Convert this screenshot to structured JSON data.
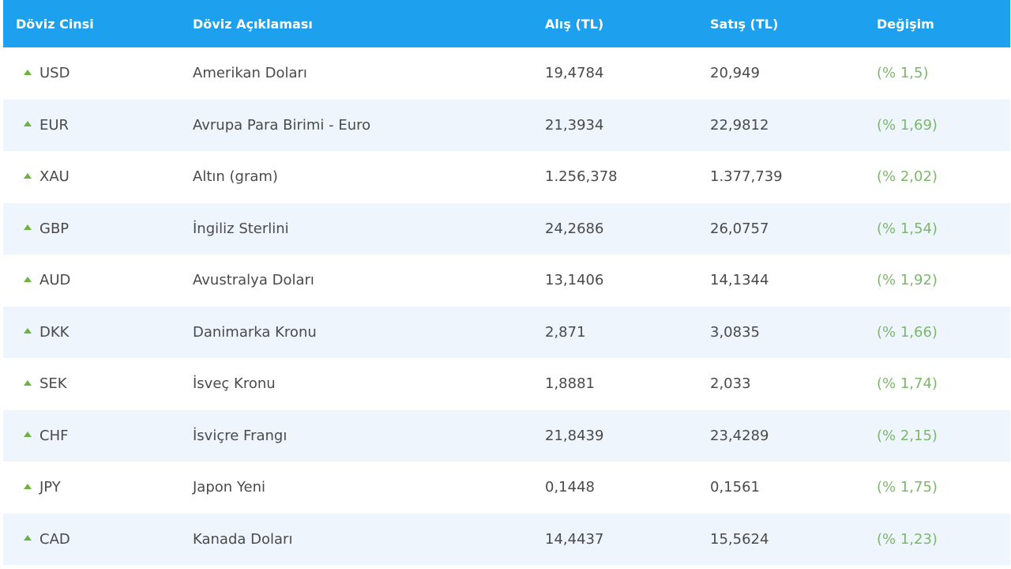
{
  "header": {
    "code": "Döviz Cinsi",
    "description": "Döviz Açıklaması",
    "buy": "Alış (TL)",
    "sell": "Satış (TL)",
    "change": "Değişim"
  },
  "colors": {
    "header_bg": "#1da1ef",
    "row_alt": "#eef5fd",
    "up_arrow": "#6db33f",
    "change_text": "#7cb86a"
  },
  "rows": [
    {
      "code": "USD",
      "description": "Amerikan Doları",
      "buy": "19,4784",
      "sell": "20,949",
      "change": "(% 1,5)",
      "trend_icon": "up-arrow-icon"
    },
    {
      "code": "EUR",
      "description": "Avrupa Para Birimi - Euro",
      "buy": "21,3934",
      "sell": "22,9812",
      "change": "(% 1,69)",
      "trend_icon": "up-arrow-icon"
    },
    {
      "code": "XAU",
      "description": "Altın (gram)",
      "buy": "1.256,378",
      "sell": "1.377,739",
      "change": "(% 2,02)",
      "trend_icon": "up-arrow-icon"
    },
    {
      "code": "GBP",
      "description": "İngiliz Sterlini",
      "buy": "24,2686",
      "sell": "26,0757",
      "change": "(% 1,54)",
      "trend_icon": "up-arrow-icon"
    },
    {
      "code": "AUD",
      "description": "Avustralya Doları",
      "buy": "13,1406",
      "sell": "14,1344",
      "change": "(% 1,92)",
      "trend_icon": "up-arrow-icon"
    },
    {
      "code": "DKK",
      "description": "Danimarka Kronu",
      "buy": "2,871",
      "sell": "3,0835",
      "change": "(% 1,66)",
      "trend_icon": "up-arrow-icon"
    },
    {
      "code": "SEK",
      "description": "İsveç Kronu",
      "buy": "1,8881",
      "sell": "2,033",
      "change": "(% 1,74)",
      "trend_icon": "up-arrow-icon"
    },
    {
      "code": "CHF",
      "description": "İsviçre Frangı",
      "buy": "21,8439",
      "sell": "23,4289",
      "change": "(% 2,15)",
      "trend_icon": "up-arrow-icon"
    },
    {
      "code": "JPY",
      "description": "Japon Yeni",
      "buy": "0,1448",
      "sell": "0,1561",
      "change": "(% 1,75)",
      "trend_icon": "up-arrow-icon"
    },
    {
      "code": "CAD",
      "description": "Kanada Doları",
      "buy": "14,4437",
      "sell": "15,5624",
      "change": "(% 1,23)",
      "trend_icon": "up-arrow-icon"
    }
  ]
}
